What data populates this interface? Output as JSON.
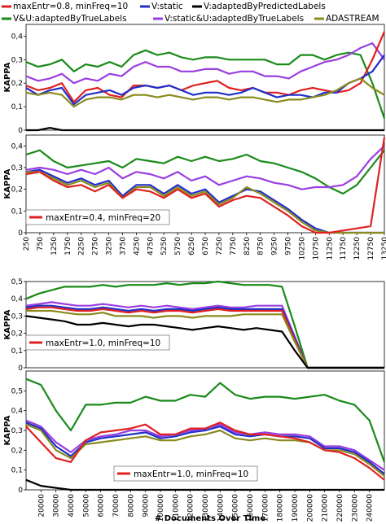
{
  "colors": {
    "red": "#e02020",
    "blue": "#1f2fc8",
    "black": "#000000",
    "green": "#1a8a1a",
    "purple": "#9a3ee0",
    "olive": "#8a8a1e"
  },
  "legend": [
    {
      "key": "red",
      "label": "maxEntr=0.8, minFreq=10"
    },
    {
      "key": "blue",
      "label": "V:static"
    },
    {
      "key": "black",
      "label": "V:adaptedByPredictedLabels"
    },
    {
      "key": "green",
      "label": "V&U:adaptedByTrueLabels"
    },
    {
      "key": "purple",
      "label": "V:static&U:adaptedByTrueLabels"
    },
    {
      "key": "olive",
      "label": "ADASTREAM"
    }
  ],
  "inset_labels": [
    "maxEntr=0.4, minFreq=20",
    "maxEntr=1.0, minFreq=10",
    "maxEntr=1.0, minFreq=10"
  ],
  "bottom_xlabel": "# Documents Over Time",
  "chart_data": [
    {
      "type": "line",
      "ylabel": "KAPPA",
      "ylim": [
        0,
        0.45
      ],
      "yticks": [
        "0",
        "0,1",
        "0,2",
        "0,3",
        "0,4"
      ],
      "x": [
        0,
        1,
        2,
        3,
        4,
        5,
        6,
        7,
        8,
        9,
        10,
        11,
        12,
        13,
        14,
        15,
        16,
        17,
        18,
        19,
        20,
        21,
        22,
        23,
        24,
        25,
        26,
        27,
        28,
        29,
        30
      ],
      "series": [
        {
          "key": "green",
          "values": [
            0.29,
            0.27,
            0.28,
            0.3,
            0.25,
            0.28,
            0.27,
            0.29,
            0.27,
            0.32,
            0.34,
            0.32,
            0.33,
            0.31,
            0.3,
            0.31,
            0.31,
            0.3,
            0.3,
            0.3,
            0.3,
            0.28,
            0.28,
            0.32,
            0.32,
            0.3,
            0.32,
            0.33,
            0.32,
            0.2,
            0.05
          ]
        },
        {
          "key": "purple",
          "values": [
            0.23,
            0.21,
            0.22,
            0.24,
            0.2,
            0.22,
            0.21,
            0.24,
            0.23,
            0.27,
            0.29,
            0.27,
            0.27,
            0.25,
            0.25,
            0.26,
            0.26,
            0.24,
            0.25,
            0.25,
            0.23,
            0.23,
            0.22,
            0.25,
            0.27,
            0.29,
            0.3,
            0.32,
            0.35,
            0.37,
            0.3
          ]
        },
        {
          "key": "red",
          "values": [
            0.19,
            0.17,
            0.18,
            0.2,
            0.12,
            0.17,
            0.18,
            0.15,
            0.14,
            0.19,
            0.19,
            0.18,
            0.19,
            0.17,
            0.19,
            0.2,
            0.21,
            0.18,
            0.17,
            0.18,
            0.16,
            0.16,
            0.15,
            0.17,
            0.18,
            0.17,
            0.16,
            0.17,
            0.2,
            0.3,
            0.42
          ]
        },
        {
          "key": "blue",
          "values": [
            0.18,
            0.15,
            0.17,
            0.18,
            0.11,
            0.15,
            0.16,
            0.17,
            0.15,
            0.18,
            0.19,
            0.18,
            0.19,
            0.17,
            0.15,
            0.16,
            0.16,
            0.15,
            0.16,
            0.18,
            0.16,
            0.14,
            0.15,
            0.15,
            0.14,
            0.16,
            0.16,
            0.2,
            0.22,
            0.25,
            0.32
          ]
        },
        {
          "key": "olive",
          "values": [
            0.16,
            0.15,
            0.16,
            0.15,
            0.1,
            0.13,
            0.14,
            0.14,
            0.13,
            0.15,
            0.15,
            0.14,
            0.15,
            0.14,
            0.13,
            0.14,
            0.14,
            0.13,
            0.14,
            0.14,
            0.13,
            0.12,
            0.13,
            0.13,
            0.14,
            0.15,
            0.17,
            0.2,
            0.22,
            0.18,
            0.15
          ]
        },
        {
          "key": "black",
          "values": [
            0.0,
            0.0,
            0.01,
            0.0,
            0.0,
            0.0,
            0.0,
            0.0,
            0.0,
            0.0,
            0.0,
            0.0,
            0.0,
            0.0,
            0.0,
            0.0,
            0.0,
            0.0,
            0.0,
            0.0,
            0.0,
            0.0,
            0.0,
            0.0,
            0.0,
            0.0,
            0.0,
            0.0,
            0.0,
            0.0,
            0.0
          ]
        }
      ]
    },
    {
      "type": "line",
      "ylabel": "KAPPA",
      "ylim": [
        0,
        0.45
      ],
      "yticks": [
        "0",
        "0,1",
        "0,2",
        "0,3",
        "0,4"
      ],
      "x": [
        250,
        750,
        1250,
        1750,
        2250,
        2750,
        3250,
        3750,
        4250,
        4750,
        5250,
        5750,
        6250,
        6750,
        7250,
        7750,
        8250,
        8750,
        9250,
        9750,
        10250,
        10750,
        11250,
        11750,
        12250,
        12750,
        13250
      ],
      "xticks": [
        "250",
        "750",
        "1250",
        "1750",
        "2250",
        "2750",
        "3250",
        "3750",
        "4250",
        "4750",
        "5250",
        "5750",
        "6250",
        "6750",
        "7250",
        "7750",
        "8250",
        "8750",
        "9250",
        "9750",
        "10250",
        "10750",
        "11250",
        "11750",
        "12250",
        "12750",
        "13250"
      ],
      "series": [
        {
          "key": "green",
          "values": [
            0.36,
            0.38,
            0.33,
            0.3,
            0.31,
            0.32,
            0.33,
            0.3,
            0.34,
            0.33,
            0.32,
            0.35,
            0.33,
            0.35,
            0.33,
            0.34,
            0.36,
            0.33,
            0.32,
            0.3,
            0.28,
            0.25,
            0.21,
            0.18,
            0.22,
            0.3,
            0.38
          ]
        },
        {
          "key": "purple",
          "values": [
            0.29,
            0.3,
            0.29,
            0.27,
            0.29,
            0.27,
            0.3,
            0.25,
            0.28,
            0.27,
            0.25,
            0.28,
            0.24,
            0.26,
            0.22,
            0.24,
            0.26,
            0.25,
            0.23,
            0.22,
            0.2,
            0.21,
            0.21,
            0.22,
            0.26,
            0.34,
            0.4
          ]
        },
        {
          "key": "blue",
          "values": [
            0.28,
            0.29,
            0.26,
            0.23,
            0.25,
            0.22,
            0.24,
            0.17,
            0.22,
            0.22,
            0.18,
            0.22,
            0.18,
            0.2,
            0.14,
            0.17,
            0.2,
            0.19,
            0.15,
            0.11,
            0.06,
            0.02,
            0.0,
            0.0,
            0.0,
            0.0,
            0.0
          ]
        },
        {
          "key": "olive",
          "values": [
            0.28,
            0.28,
            0.25,
            0.22,
            0.24,
            0.21,
            0.23,
            0.16,
            0.21,
            0.21,
            0.17,
            0.21,
            0.17,
            0.19,
            0.13,
            0.16,
            0.21,
            0.18,
            0.14,
            0.1,
            0.05,
            0.01,
            0.0,
            0.0,
            0.0,
            0.0,
            0.0
          ]
        },
        {
          "key": "red",
          "values": [
            0.27,
            0.28,
            0.24,
            0.21,
            0.22,
            0.19,
            0.22,
            0.16,
            0.2,
            0.19,
            0.16,
            0.2,
            0.16,
            0.18,
            0.12,
            0.15,
            0.17,
            0.16,
            0.12,
            0.08,
            0.03,
            0.0,
            0.0,
            0.01,
            0.02,
            0.03,
            0.44
          ]
        }
      ]
    },
    {
      "type": "line",
      "ylabel": "KAPPA",
      "ylim": [
        0,
        0.5
      ],
      "yticks": [
        "0",
        "0,1",
        "0,2",
        "0,3",
        "0,4",
        "0,5"
      ],
      "x": [
        0,
        1,
        2,
        3,
        4,
        5,
        6,
        7,
        8,
        9,
        10,
        11,
        12,
        13,
        14,
        15,
        16,
        17,
        18,
        19,
        20,
        21,
        22,
        23,
        24,
        25,
        26,
        27,
        28
      ],
      "series": [
        {
          "key": "green",
          "values": [
            0.4,
            0.43,
            0.45,
            0.47,
            0.47,
            0.47,
            0.48,
            0.47,
            0.48,
            0.48,
            0.48,
            0.49,
            0.48,
            0.49,
            0.49,
            0.5,
            0.49,
            0.48,
            0.48,
            0.48,
            0.47,
            0.24,
            0.0,
            0.0,
            0.0,
            0.0,
            0.0,
            0.0,
            0.0
          ]
        },
        {
          "key": "purple",
          "values": [
            0.36,
            0.37,
            0.38,
            0.37,
            0.36,
            0.36,
            0.37,
            0.36,
            0.35,
            0.36,
            0.35,
            0.36,
            0.35,
            0.34,
            0.35,
            0.36,
            0.35,
            0.35,
            0.36,
            0.36,
            0.36,
            0.18,
            0.0,
            0.0,
            0.0,
            0.0,
            0.0,
            0.0,
            0.0
          ]
        },
        {
          "key": "blue",
          "values": [
            0.35,
            0.36,
            0.36,
            0.35,
            0.34,
            0.34,
            0.35,
            0.34,
            0.33,
            0.34,
            0.33,
            0.34,
            0.34,
            0.33,
            0.34,
            0.35,
            0.34,
            0.34,
            0.34,
            0.34,
            0.34,
            0.17,
            0.0,
            0.0,
            0.0,
            0.0,
            0.0,
            0.0,
            0.0
          ]
        },
        {
          "key": "red",
          "values": [
            0.34,
            0.35,
            0.35,
            0.34,
            0.33,
            0.33,
            0.34,
            0.33,
            0.32,
            0.33,
            0.32,
            0.33,
            0.33,
            0.32,
            0.33,
            0.34,
            0.33,
            0.33,
            0.33,
            0.33,
            0.33,
            0.16,
            0.0,
            0.0,
            0.0,
            0.0,
            0.0,
            0.0,
            0.0
          ]
        },
        {
          "key": "olive",
          "values": [
            0.33,
            0.33,
            0.33,
            0.32,
            0.31,
            0.31,
            0.32,
            0.3,
            0.3,
            0.3,
            0.29,
            0.3,
            0.3,
            0.29,
            0.3,
            0.3,
            0.3,
            0.31,
            0.31,
            0.31,
            0.31,
            0.15,
            0.0,
            0.0,
            0.0,
            0.0,
            0.0,
            0.0,
            0.0
          ]
        },
        {
          "key": "black",
          "values": [
            0.3,
            0.29,
            0.28,
            0.27,
            0.25,
            0.25,
            0.26,
            0.25,
            0.24,
            0.25,
            0.25,
            0.24,
            0.23,
            0.22,
            0.23,
            0.24,
            0.23,
            0.22,
            0.23,
            0.22,
            0.21,
            0.1,
            0.0,
            0.0,
            0.0,
            0.0,
            0.0,
            0.0,
            0.0
          ]
        }
      ]
    },
    {
      "type": "line",
      "ylabel": "KAPPA",
      "xlabel": "# Documents Over Time",
      "ylim": [
        0,
        0.6
      ],
      "yticks": [
        "0",
        "0,1",
        "0,2",
        "0,3",
        "0,4",
        "0,5"
      ],
      "x": [
        10000,
        20000,
        30000,
        40000,
        50000,
        60000,
        70000,
        80000,
        90000,
        100000,
        110000,
        120000,
        130000,
        140000,
        150000,
        160000,
        170000,
        180000,
        190000,
        200000,
        210000,
        220000,
        230000,
        240000,
        250000
      ],
      "xticks": [
        "20000",
        "30000",
        "40000",
        "50000",
        "60000",
        "70000",
        "80000",
        "90000",
        "100000",
        "110000",
        "120000",
        "130000",
        "140000",
        "150000",
        "160000",
        "170000",
        "180000",
        "190000",
        "200000",
        "210000",
        "220000",
        "230000",
        "240000"
      ],
      "series": [
        {
          "key": "green",
          "values": [
            0.56,
            0.53,
            0.4,
            0.3,
            0.43,
            0.43,
            0.44,
            0.44,
            0.47,
            0.45,
            0.45,
            0.48,
            0.47,
            0.54,
            0.48,
            0.46,
            0.47,
            0.47,
            0.46,
            0.47,
            0.48,
            0.45,
            0.43,
            0.35,
            0.14
          ]
        },
        {
          "key": "purple",
          "values": [
            0.35,
            0.32,
            0.24,
            0.19,
            0.25,
            0.27,
            0.28,
            0.3,
            0.3,
            0.27,
            0.28,
            0.3,
            0.31,
            0.33,
            0.29,
            0.28,
            0.29,
            0.28,
            0.28,
            0.27,
            0.22,
            0.22,
            0.2,
            0.15,
            0.1
          ]
        },
        {
          "key": "blue",
          "values": [
            0.34,
            0.31,
            0.22,
            0.17,
            0.24,
            0.26,
            0.27,
            0.28,
            0.29,
            0.26,
            0.27,
            0.29,
            0.3,
            0.32,
            0.28,
            0.27,
            0.28,
            0.27,
            0.27,
            0.26,
            0.21,
            0.21,
            0.19,
            0.14,
            0.08
          ]
        },
        {
          "key": "olive",
          "values": [
            0.33,
            0.3,
            0.2,
            0.16,
            0.23,
            0.24,
            0.25,
            0.26,
            0.27,
            0.25,
            0.25,
            0.27,
            0.28,
            0.3,
            0.26,
            0.25,
            0.26,
            0.25,
            0.25,
            0.24,
            0.2,
            0.2,
            0.18,
            0.13,
            0.07
          ]
        },
        {
          "key": "red",
          "values": [
            0.32,
            0.24,
            0.16,
            0.14,
            0.25,
            0.29,
            0.3,
            0.31,
            0.33,
            0.28,
            0.28,
            0.31,
            0.31,
            0.34,
            0.3,
            0.28,
            0.28,
            0.27,
            0.26,
            0.24,
            0.2,
            0.19,
            0.16,
            0.11,
            0.05
          ]
        },
        {
          "key": "black",
          "values": [
            0.05,
            0.02,
            0.01,
            0.0,
            0.0,
            0.0,
            0.0,
            0.0,
            0.0,
            0.0,
            0.0,
            0.0,
            0.0,
            0.0,
            0.0,
            0.0,
            0.0,
            0.0,
            0.0,
            0.0,
            0.0,
            0.0,
            0.0,
            0.0,
            0.0
          ]
        }
      ]
    }
  ]
}
